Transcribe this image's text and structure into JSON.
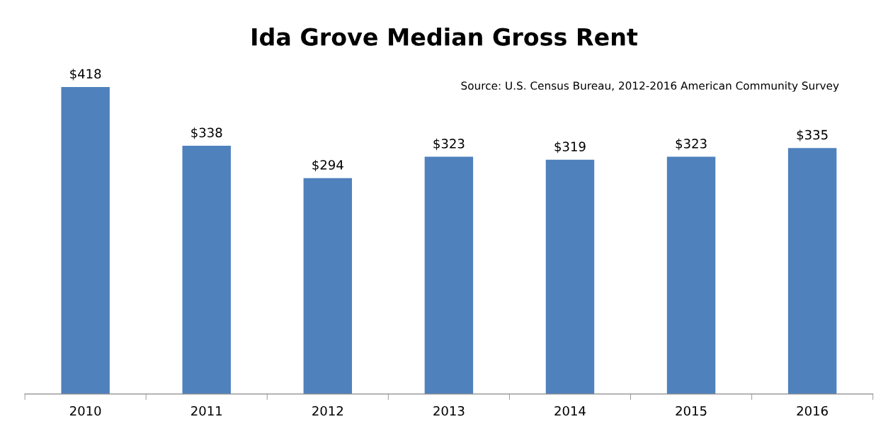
{
  "chart_data": {
    "type": "bar",
    "title": "Ida Grove Median Gross Rent",
    "categories": [
      "2010",
      "2011",
      "2012",
      "2013",
      "2014",
      "2015",
      "2016"
    ],
    "values": [
      418,
      338,
      294,
      323,
      319,
      323,
      335
    ],
    "value_labels": [
      "$418",
      "$338",
      "$294",
      "$323",
      "$319",
      "$323",
      "$335"
    ],
    "color": "#4f81bd",
    "annotations": [
      "Source: U.S. Census Bureau, 2012-2016 American Community Survey"
    ],
    "orientation": "vertical"
  }
}
